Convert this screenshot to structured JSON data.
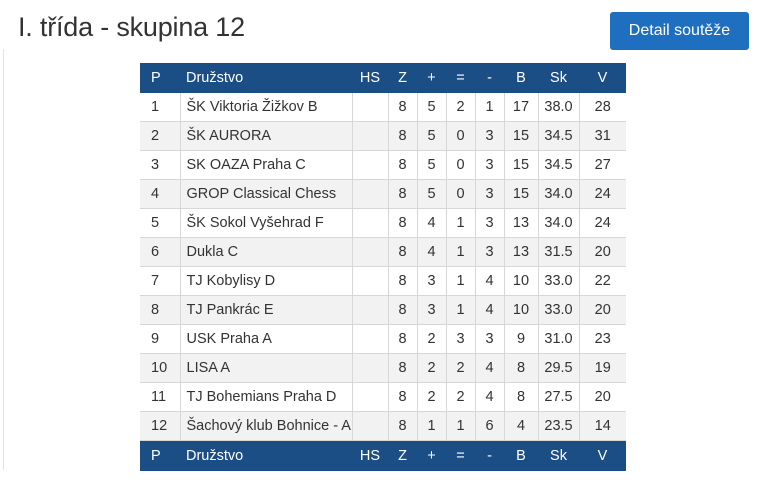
{
  "page": {
    "title": "I. třída - skupina 12",
    "detail_button_label": "Detail soutěže"
  },
  "table": {
    "headers": {
      "p": "P",
      "team": "Družstvo",
      "hs": "HS",
      "z": "Z",
      "plus": "+",
      "eq": "=",
      "minus": "-",
      "b": "B",
      "sk": "Sk",
      "v": "V"
    },
    "rows": [
      {
        "p": "1",
        "team": "ŠK Viktoria Žižkov B",
        "hs": "",
        "z": "8",
        "plus": "5",
        "eq": "2",
        "minus": "1",
        "b": "17",
        "sk": "38.0",
        "v": "28"
      },
      {
        "p": "2",
        "team": "ŠK AURORA",
        "hs": "",
        "z": "8",
        "plus": "5",
        "eq": "0",
        "minus": "3",
        "b": "15",
        "sk": "34.5",
        "v": "31"
      },
      {
        "p": "3",
        "team": "SK OAZA Praha C",
        "hs": "",
        "z": "8",
        "plus": "5",
        "eq": "0",
        "minus": "3",
        "b": "15",
        "sk": "34.5",
        "v": "27"
      },
      {
        "p": "4",
        "team": "GROP Classical Chess",
        "hs": "",
        "z": "8",
        "plus": "5",
        "eq": "0",
        "minus": "3",
        "b": "15",
        "sk": "34.0",
        "v": "24"
      },
      {
        "p": "5",
        "team": "ŠK Sokol Vyšehrad F",
        "hs": "",
        "z": "8",
        "plus": "4",
        "eq": "1",
        "minus": "3",
        "b": "13",
        "sk": "34.0",
        "v": "24"
      },
      {
        "p": "6",
        "team": "Dukla C",
        "hs": "",
        "z": "8",
        "plus": "4",
        "eq": "1",
        "minus": "3",
        "b": "13",
        "sk": "31.5",
        "v": "20"
      },
      {
        "p": "7",
        "team": "TJ Kobylisy D",
        "hs": "",
        "z": "8",
        "plus": "3",
        "eq": "1",
        "minus": "4",
        "b": "10",
        "sk": "33.0",
        "v": "22"
      },
      {
        "p": "8",
        "team": "TJ Pankrác E",
        "hs": "",
        "z": "8",
        "plus": "3",
        "eq": "1",
        "minus": "4",
        "b": "10",
        "sk": "33.0",
        "v": "20"
      },
      {
        "p": "9",
        "team": "USK Praha A",
        "hs": "",
        "z": "8",
        "plus": "2",
        "eq": "3",
        "minus": "3",
        "b": "9",
        "sk": "31.0",
        "v": "23"
      },
      {
        "p": "10",
        "team": "LISA A",
        "hs": "",
        "z": "8",
        "plus": "2",
        "eq": "2",
        "minus": "4",
        "b": "8",
        "sk": "29.5",
        "v": "19"
      },
      {
        "p": "11",
        "team": "TJ Bohemians Praha D",
        "hs": "",
        "z": "8",
        "plus": "2",
        "eq": "2",
        "minus": "4",
        "b": "8",
        "sk": "27.5",
        "v": "20"
      },
      {
        "p": "12",
        "team": "Šachový klub Bohnice - A",
        "hs": "",
        "z": "8",
        "plus": "1",
        "eq": "1",
        "minus": "6",
        "b": "4",
        "sk": "23.5",
        "v": "14"
      }
    ]
  },
  "colors": {
    "header_bg": "#1c4e86",
    "button_bg": "#1e6fbf",
    "row_alt_bg": "#f2f2f2"
  }
}
